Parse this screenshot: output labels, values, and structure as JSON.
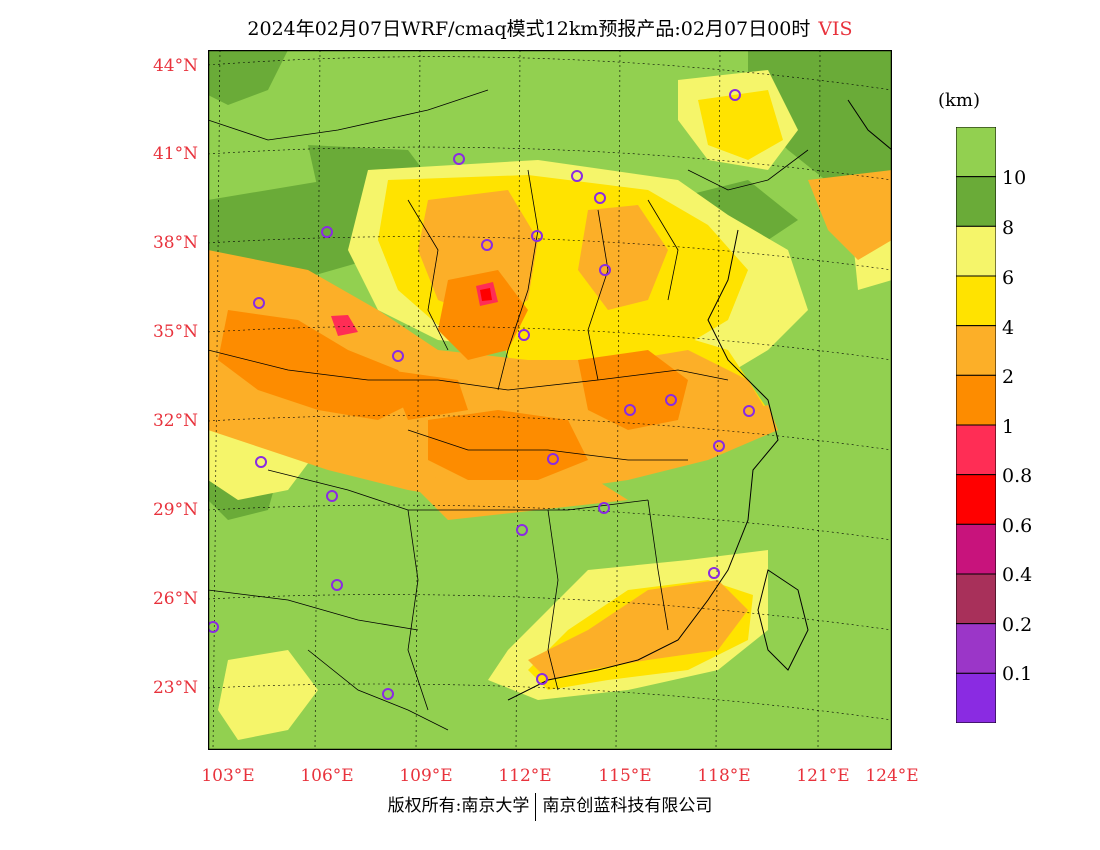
{
  "title": {
    "main": "2024年02月07日WRF/cmaq模式12km预报产品:02月07日00时",
    "variable": "VIS"
  },
  "lat_labels": [
    "44°N",
    "41°N",
    "38°N",
    "35°N",
    "32°N",
    "29°N",
    "26°N",
    "23°N"
  ],
  "lon_labels": [
    "103°E",
    "106°E",
    "109°E",
    "112°E",
    "115°E",
    "118°E",
    "121°E",
    "124°E"
  ],
  "legend": {
    "unit": "(km)",
    "labels": [
      "10",
      "8",
      "6",
      "4",
      "2",
      "1",
      "0.8",
      "0.6",
      "0.4",
      "0.2",
      "0.1"
    ],
    "colors": [
      "#92d050",
      "#6aab38",
      "#f5f56a",
      "#ffe300",
      "#fcaf28",
      "#fd8c00",
      "#ff2d55",
      "#ff0000",
      "#c8137c",
      "#a8305a",
      "#9b36c8",
      "#8a2be2"
    ]
  },
  "colors": {
    "land_green": "#92d050",
    "station_marker": "#8a2be2",
    "label_red": "#e8323c"
  },
  "footer": {
    "left": "版权所有:南京大学",
    "right": "南京创蓝科技有限公司"
  }
}
